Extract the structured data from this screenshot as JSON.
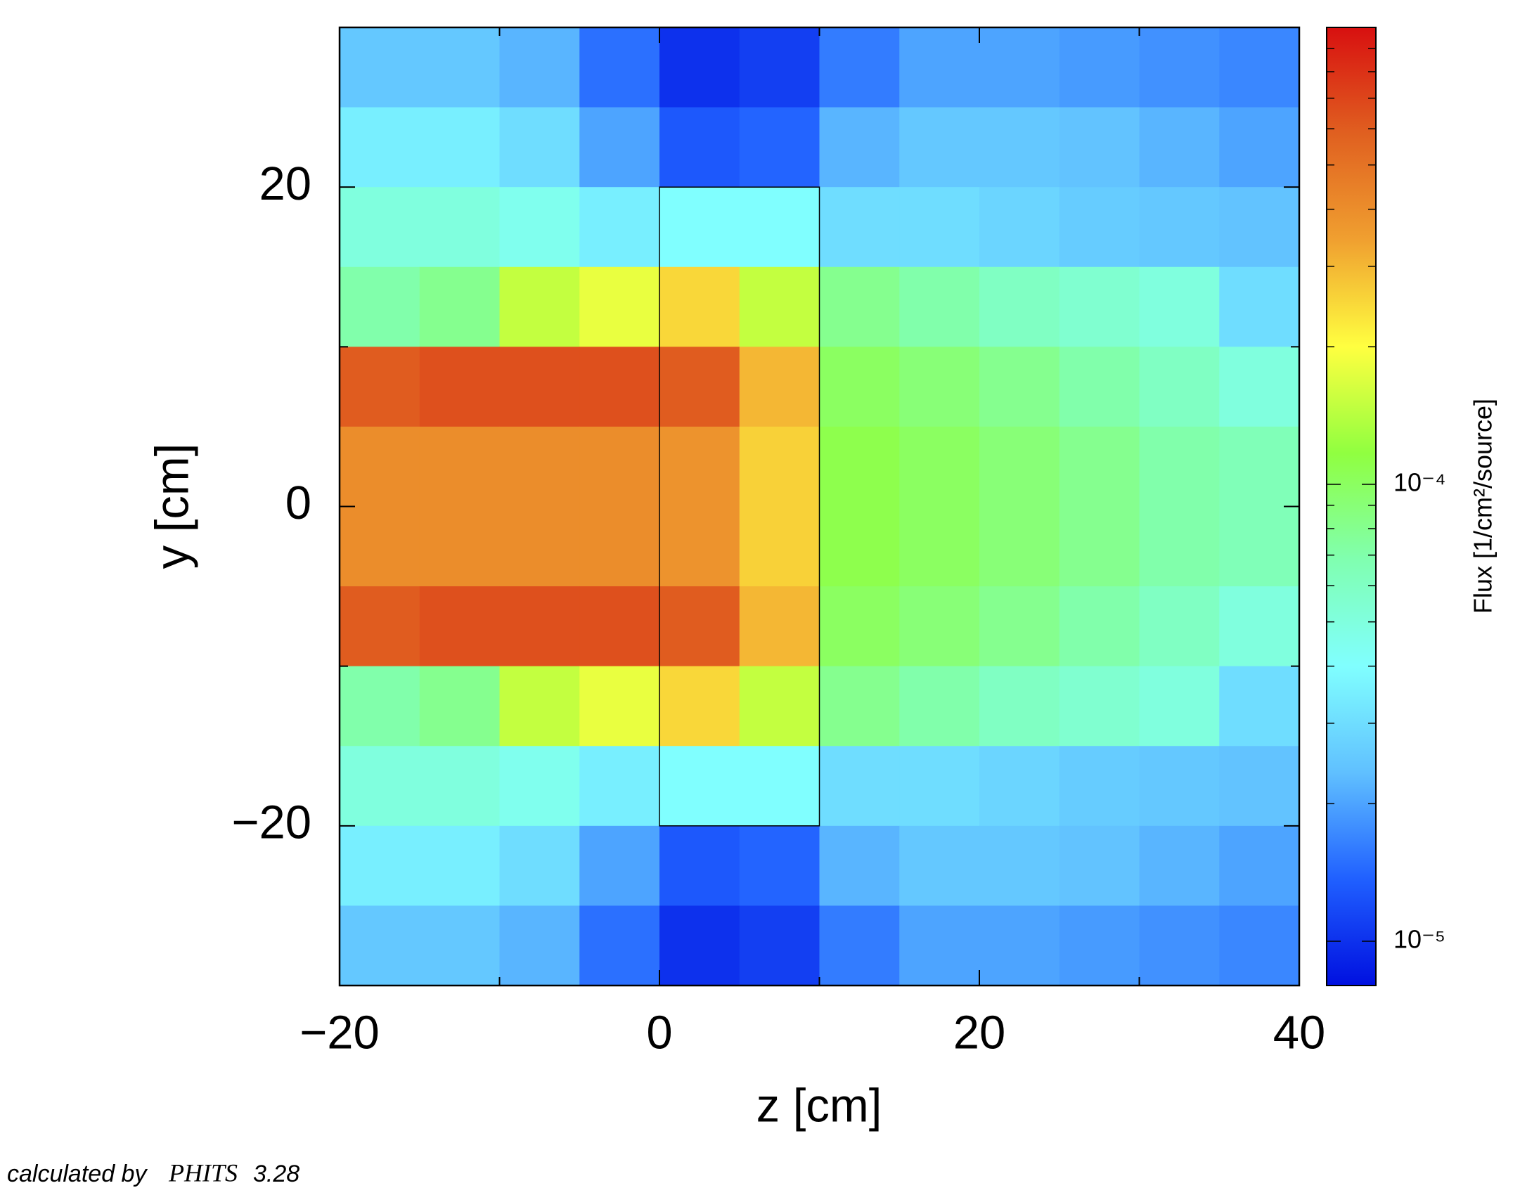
{
  "chart_data": {
    "type": "heatmap",
    "xlabel": "z [cm]",
    "ylabel": "y [cm]",
    "colorbar_label": "Flux [1/cm²/source]",
    "xlim": [
      -20,
      40
    ],
    "ylim": [
      -30,
      30
    ],
    "xticks": [
      {
        "value": -20,
        "label": "−20"
      },
      0,
      20,
      40
    ],
    "yticks": [
      {
        "value": -20,
        "label": "−20"
      },
      0,
      20
    ],
    "xminorticks": [
      -10,
      10,
      30
    ],
    "yminorticks": [
      -30,
      -10,
      10,
      30
    ],
    "xedges": [
      -20,
      -15,
      -10,
      -5,
      0,
      5,
      10,
      15,
      20,
      25,
      30,
      35,
      40
    ],
    "yedges": [
      30,
      25,
      20,
      15,
      10,
      5,
      0,
      -5,
      -10,
      -15,
      -20,
      -25,
      -30
    ],
    "values": [
      [
        2.5e-05,
        2.5e-05,
        2.2e-05,
        1.5e-05,
        1e-05,
        1.1e-05,
        1.6e-05,
        2e-05,
        2e-05,
        1.9e-05,
        1.8e-05,
        1.7e-05
      ],
      [
        3.5e-05,
        3.5e-05,
        3e-05,
        2e-05,
        1.3e-05,
        1.4e-05,
        2.2e-05,
        2.5e-05,
        2.5e-05,
        2.4e-05,
        2.2e-05,
        2e-05
      ],
      [
        5e-05,
        5e-05,
        4.5e-05,
        3.5e-05,
        4e-05,
        4e-05,
        3e-05,
        3e-05,
        2.8e-05,
        2.6e-05,
        2.5e-05,
        2.4e-05
      ],
      [
        7e-05,
        8e-05,
        0.00015,
        0.00018,
        0.00025,
        0.00015,
        8e-05,
        7e-05,
        6e-05,
        5.5e-05,
        5e-05,
        3e-05
      ],
      [
        0.0006,
        0.00065,
        0.00065,
        0.00065,
        0.0006,
        0.0003,
        0.0001,
        9e-05,
        8e-05,
        7e-05,
        6e-05,
        5e-05
      ],
      [
        0.0004,
        0.0004,
        0.0004,
        0.0004,
        0.00038,
        0.00026,
        0.00011,
        0.0001,
        9e-05,
        8e-05,
        7e-05,
        6.5e-05
      ],
      [
        0.0004,
        0.0004,
        0.0004,
        0.0004,
        0.00038,
        0.00026,
        0.00011,
        0.0001,
        9e-05,
        8e-05,
        7e-05,
        6.5e-05
      ],
      [
        0.0006,
        0.00065,
        0.00065,
        0.00065,
        0.0006,
        0.0003,
        0.0001,
        9e-05,
        8e-05,
        7e-05,
        6e-05,
        5e-05
      ],
      [
        7e-05,
        8e-05,
        0.00015,
        0.00018,
        0.00025,
        0.00015,
        8e-05,
        7e-05,
        6e-05,
        5.5e-05,
        5e-05,
        3e-05
      ],
      [
        5e-05,
        5e-05,
        4.5e-05,
        3.5e-05,
        4e-05,
        4e-05,
        3e-05,
        3e-05,
        2.8e-05,
        2.6e-05,
        2.5e-05,
        2.4e-05
      ],
      [
        3.5e-05,
        3.5e-05,
        3e-05,
        2e-05,
        1.3e-05,
        1.4e-05,
        2.2e-05,
        2.5e-05,
        2.5e-05,
        2.4e-05,
        2.2e-05,
        2e-05
      ],
      [
        2.5e-05,
        2.5e-05,
        2.2e-05,
        1.5e-05,
        1e-05,
        1.1e-05,
        1.6e-05,
        2e-05,
        2e-05,
        1.9e-05,
        1.8e-05,
        1.7e-05
      ]
    ],
    "clim": [
      8e-06,
      0.001
    ],
    "log_color": true,
    "cticks": [
      {
        "value": 1e-05,
        "label": "10⁻⁵"
      },
      {
        "value": 0.0001,
        "label": "10⁻⁴"
      }
    ],
    "cminorticks": [
      2e-05,
      3e-05,
      4e-05,
      5e-05,
      6e-05,
      7e-05,
      8e-05,
      9e-05,
      0.0002,
      0.0003,
      0.0004,
      0.0005,
      0.0006,
      0.0007,
      0.0008,
      0.0009
    ],
    "colormap": [
      "#0010e0",
      "#2060ff",
      "#60c0ff",
      "#80ffff",
      "#80ffb0",
      "#90ff40",
      "#ffff40",
      "#f0a030",
      "#e06020",
      "#d81010"
    ],
    "outline": {
      "x": [
        0,
        10
      ],
      "y": [
        -20,
        20
      ]
    }
  },
  "footer": {
    "prefix": "calculated by",
    "code": "PHITS",
    "version": "3.28"
  }
}
